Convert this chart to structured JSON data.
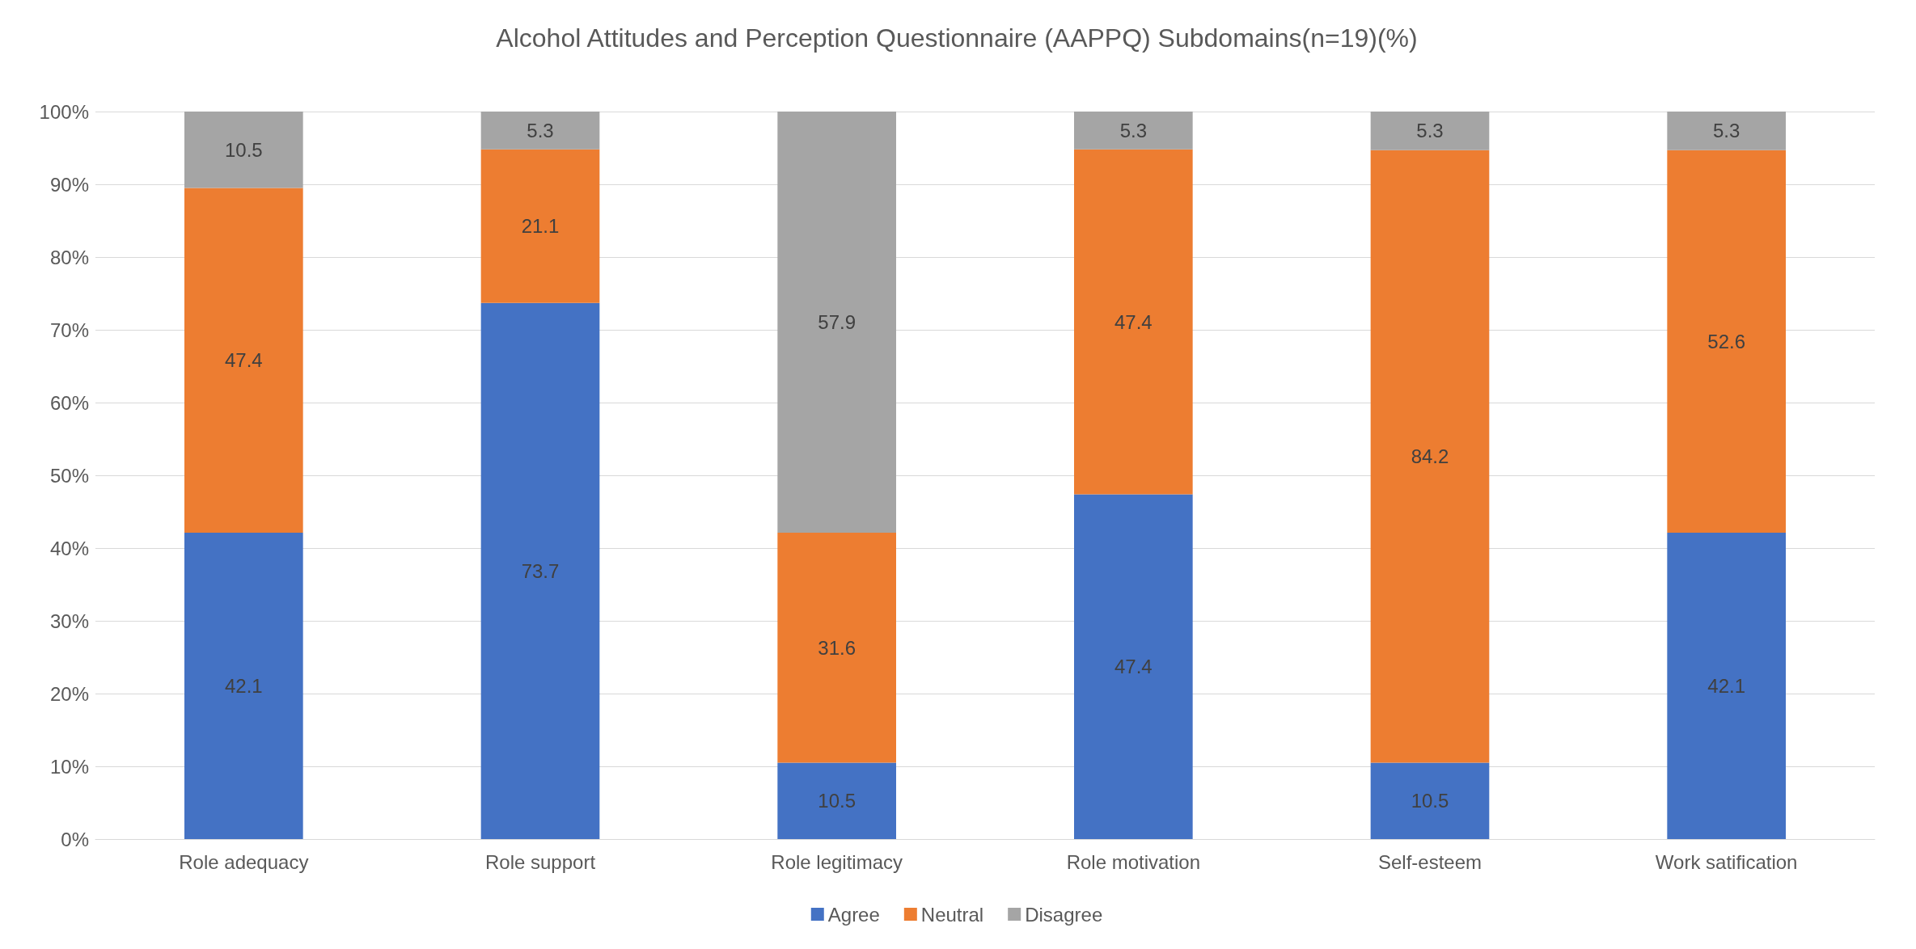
{
  "chart_data": {
    "type": "bar",
    "title": "Alcohol Attitudes and Perception Questionnaire (AAPPQ) Subdomains(n=19)(%)",
    "categories": [
      "Role adequacy",
      "Role support",
      "Role legitimacy",
      "Role motivation",
      "Self-esteem",
      "Work satification"
    ],
    "series": [
      {
        "name": "Agree",
        "color": "#4472c4",
        "values": [
          42.1,
          73.7,
          10.5,
          47.4,
          10.5,
          42.1
        ]
      },
      {
        "name": "Neutral",
        "color": "#ed7d31",
        "values": [
          47.4,
          21.1,
          31.6,
          47.4,
          84.2,
          52.6
        ]
      },
      {
        "name": "Disagree",
        "color": "#a5a5a5",
        "values": [
          10.5,
          5.3,
          57.9,
          5.3,
          5.3,
          5.3
        ]
      }
    ],
    "stacked": true,
    "data_labels": true,
    "ylim": [
      0,
      100
    ],
    "yticks": [
      {
        "value": 0,
        "label": "0%"
      },
      {
        "value": 10,
        "label": "10%"
      },
      {
        "value": 20,
        "label": "20%"
      },
      {
        "value": 30,
        "label": "30%"
      },
      {
        "value": 40,
        "label": "40%"
      },
      {
        "value": 50,
        "label": "50%"
      },
      {
        "value": 60,
        "label": "60%"
      },
      {
        "value": 70,
        "label": "70%"
      },
      {
        "value": 80,
        "label": "80%"
      },
      {
        "value": 90,
        "label": "90%"
      },
      {
        "value": 100,
        "label": "100%"
      }
    ],
    "grid": "y",
    "legend": "bottom"
  }
}
